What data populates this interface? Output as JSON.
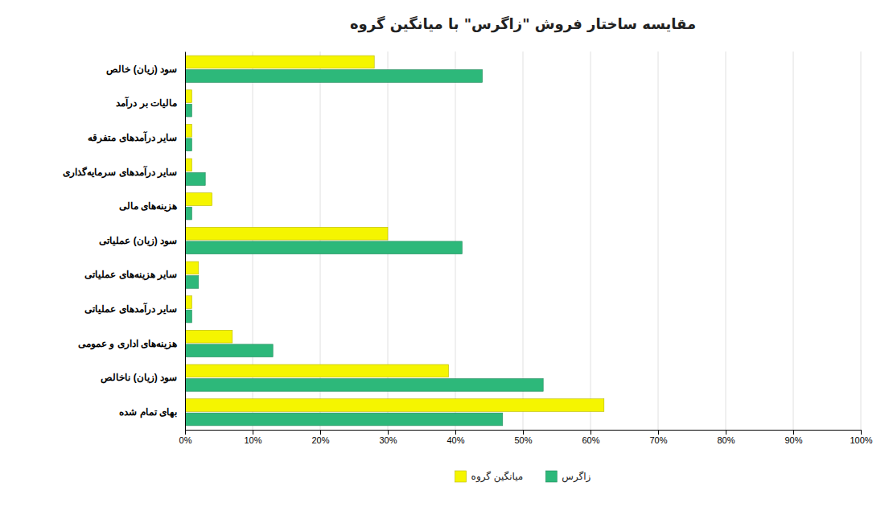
{
  "chart_data": {
    "type": "bar",
    "orientation": "horizontal",
    "title": "مقایسه ساختار فروش \"زاگرس\" با میانگین گروه",
    "categories": [
      "سود (زیان) خالص",
      "مالیات بر درآمد",
      "سایر درآمدهای متفرقه",
      "سایر درآمدهای سرمایه‌گذاری",
      "هزینه‌های مالی",
      "سود (زیان) عملیاتی",
      "سایر هزینه‌های عملیاتی",
      "سایر درآمدهای عملیاتی",
      "هزینه‌های اداری و عمومی",
      "سود (زیان) ناخالص",
      "بهای تمام شده"
    ],
    "series": [
      {
        "name": "میانگین گروه",
        "color": "#f5f500",
        "values": [
          28,
          1,
          1,
          1,
          4,
          30,
          2,
          1,
          7,
          39,
          62
        ]
      },
      {
        "name": "زاگرس",
        "color": "#2db87a",
        "values": [
          44,
          1,
          1,
          3,
          1,
          41,
          2,
          1,
          13,
          53,
          47
        ]
      }
    ],
    "xlim": [
      0,
      100
    ],
    "xticks": [
      {
        "value": 0,
        "label": "0%"
      },
      {
        "value": 10,
        "label": "10%"
      },
      {
        "value": 20,
        "label": "20%"
      },
      {
        "value": 30,
        "label": "30%"
      },
      {
        "value": 40,
        "label": "40%"
      },
      {
        "value": 50,
        "label": "50%"
      },
      {
        "value": 60,
        "label": "60%"
      },
      {
        "value": 70,
        "label": "70%"
      },
      {
        "value": 80,
        "label": "80%"
      },
      {
        "value": 90,
        "label": "90%"
      },
      {
        "value": 100,
        "label": "100%"
      }
    ],
    "grid": true,
    "legend": "bottom"
  }
}
